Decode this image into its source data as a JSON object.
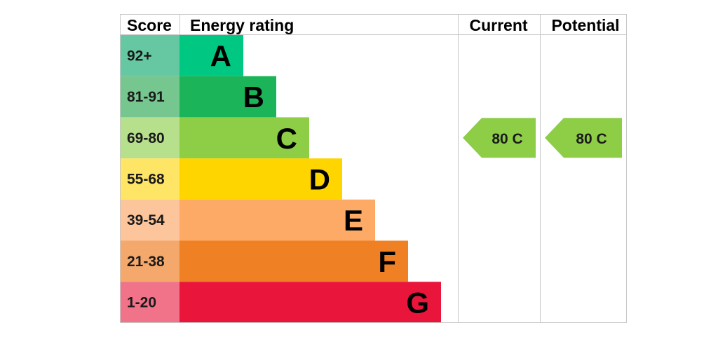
{
  "headers": {
    "score": "Score",
    "energy_rating": "Energy rating",
    "current": "Current",
    "potential": "Potential"
  },
  "chart_data": {
    "type": "bar",
    "categories": [
      "A",
      "B",
      "C",
      "D",
      "E",
      "F",
      "G"
    ],
    "bands": [
      {
        "letter": "A",
        "range": "92+",
        "bar_color": "#00c781",
        "score_color": "#65c8a3"
      },
      {
        "letter": "B",
        "range": "81-91",
        "bar_color": "#1cb459",
        "score_color": "#76c68f"
      },
      {
        "letter": "C",
        "range": "69-80",
        "bar_color": "#8dce46",
        "score_color": "#b7e08d"
      },
      {
        "letter": "D",
        "range": "55-68",
        "bar_color": "#ffd500",
        "score_color": "#ffe566"
      },
      {
        "letter": "E",
        "range": "39-54",
        "bar_color": "#fcaa65",
        "score_color": "#fdc59b"
      },
      {
        "letter": "F",
        "range": "21-38",
        "bar_color": "#ef8023",
        "score_color": "#f5a86b"
      },
      {
        "letter": "G",
        "range": "1-20",
        "bar_color": "#e9153b",
        "score_color": "#f07389"
      }
    ],
    "current": {
      "score": 80,
      "band": "C",
      "label": "80  C",
      "color": "#8dce46"
    },
    "potential": {
      "score": 80,
      "band": "C",
      "label": "80  C",
      "color": "#8dce46"
    }
  }
}
